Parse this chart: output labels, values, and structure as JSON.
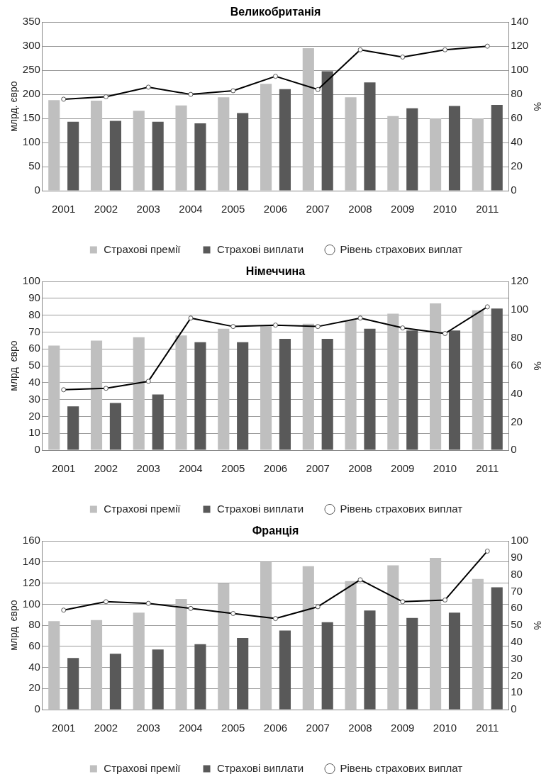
{
  "chart_data": [
    {
      "type": "bar",
      "title": "Великобританія",
      "ylabel": "млрд. євро",
      "y2label": "%",
      "categories": [
        "2001",
        "2002",
        "2003",
        "2004",
        "2005",
        "2006",
        "2007",
        "2008",
        "2009",
        "2010",
        "2011"
      ],
      "series": [
        {
          "name": "Страхові премії",
          "color": "#bfbfbf",
          "values": [
            188,
            187,
            166,
            177,
            194,
            222,
            296,
            194,
            155,
            150,
            150
          ]
        },
        {
          "name": "Страхові виплати",
          "color": "#595959",
          "values": [
            143,
            145,
            143,
            140,
            161,
            211,
            248,
            225,
            171,
            176,
            178
          ]
        },
        {
          "name": "Рівень страхових виплат",
          "type": "line",
          "axis": "y2",
          "color": "#000000",
          "values": [
            76,
            78,
            86,
            80,
            83,
            95,
            84,
            117,
            111,
            117,
            120
          ]
        }
      ],
      "ylim": [
        0,
        350
      ],
      "yticks": [
        0,
        50,
        100,
        150,
        200,
        250,
        300,
        350
      ],
      "y2lim": [
        0,
        140
      ],
      "y2ticks": [
        0,
        20,
        40,
        60,
        80,
        100,
        120,
        140
      ],
      "grid": "y",
      "legend": "bottom",
      "marker": "circle"
    },
    {
      "type": "bar",
      "title": "Німеччина",
      "ylabel": "млрд  євро",
      "y2label": "%",
      "categories": [
        "2001",
        "2002",
        "2003",
        "2004",
        "2005",
        "2006",
        "2007",
        "2008",
        "2009",
        "2010",
        "2011"
      ],
      "series": [
        {
          "name": "Страхові премії",
          "color": "#bfbfbf",
          "values": [
            62,
            65,
            67,
            68,
            72,
            74,
            75,
            77,
            81,
            87,
            83
          ]
        },
        {
          "name": "Страхові виплати",
          "color": "#595959",
          "values": [
            26,
            28,
            33,
            64,
            64,
            66,
            66,
            72,
            71,
            71,
            84
          ]
        },
        {
          "name": "Рівень страхових виплат",
          "type": "line",
          "axis": "y2",
          "color": "#000000",
          "values": [
            43,
            44,
            49,
            94,
            88,
            89,
            88,
            94,
            87,
            83,
            102
          ]
        }
      ],
      "ylim": [
        0,
        100
      ],
      "yticks": [
        0,
        10,
        20,
        30,
        40,
        50,
        60,
        70,
        80,
        90,
        100
      ],
      "y2lim": [
        0,
        120
      ],
      "y2ticks": [
        0,
        20,
        40,
        60,
        80,
        100,
        120
      ],
      "grid": "y",
      "legend": "bottom",
      "marker": "circle"
    },
    {
      "type": "bar",
      "title": "Франція",
      "ylabel": "млрд  євро",
      "y2label": "%",
      "categories": [
        "2001",
        "2002",
        "2003",
        "2004",
        "2005",
        "2006",
        "2007",
        "2008",
        "2009",
        "2010",
        "2011"
      ],
      "series": [
        {
          "name": "Страхові премії",
          "color": "#bfbfbf",
          "values": [
            84,
            85,
            92,
            105,
            120,
            140,
            136,
            122,
            137,
            144,
            124
          ]
        },
        {
          "name": "Страхові виплати",
          "color": "#595959",
          "values": [
            49,
            53,
            57,
            62,
            68,
            75,
            83,
            94,
            87,
            92,
            116
          ]
        },
        {
          "name": "Рівень страхових виплат",
          "type": "line",
          "axis": "y2",
          "color": "#000000",
          "values": [
            59,
            64,
            63,
            60,
            57,
            54,
            61,
            77,
            64,
            65,
            94
          ]
        }
      ],
      "ylim": [
        0,
        160
      ],
      "yticks": [
        0,
        20,
        40,
        60,
        80,
        100,
        120,
        140,
        160
      ],
      "y2lim": [
        0,
        100
      ],
      "y2ticks": [
        0,
        10,
        20,
        30,
        40,
        50,
        60,
        70,
        80,
        90,
        100
      ],
      "grid": "y",
      "legend": "bottom",
      "marker": "circle"
    }
  ]
}
